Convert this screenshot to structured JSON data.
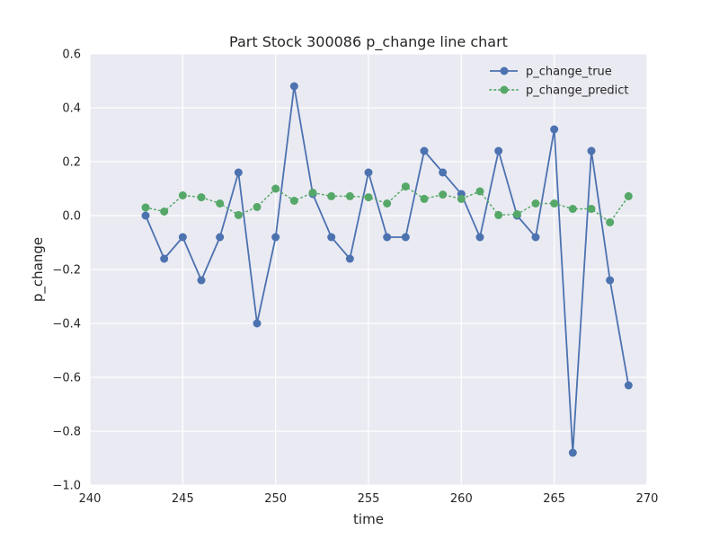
{
  "chart_data": {
    "type": "line",
    "title": "Part Stock 300086 p_change line chart",
    "xlabel": "time",
    "ylabel": "p_change",
    "xlim": [
      240,
      270
    ],
    "ylim": [
      -1.0,
      0.6
    ],
    "xticks": [
      "240",
      "245",
      "250",
      "255",
      "260",
      "265",
      "270"
    ],
    "yticks": [
      "0.6",
      "0.4",
      "0.2",
      "0.0",
      "−0.2",
      "−0.4",
      "−0.6",
      "−0.8",
      "−1.0"
    ],
    "grid": true,
    "legend_position": "top-right",
    "x": [
      243,
      244,
      245,
      246,
      247,
      248,
      249,
      250,
      251,
      252,
      253,
      254,
      255,
      256,
      257,
      258,
      259,
      260,
      261,
      262,
      263,
      264,
      265,
      266,
      267,
      268,
      269
    ],
    "series": [
      {
        "name": "p_change_true",
        "color": "#4c72b0",
        "style": "solid-with-markers",
        "values": [
          0.0,
          -0.16,
          -0.08,
          -0.24,
          -0.08,
          0.16,
          -0.4,
          -0.08,
          0.48,
          0.08,
          -0.08,
          -0.16,
          0.16,
          -0.08,
          -0.08,
          0.24,
          0.16,
          0.08,
          -0.08,
          0.24,
          0.0,
          -0.08,
          0.32,
          -0.88,
          0.24,
          -0.24,
          -0.63
        ]
      },
      {
        "name": "p_change_predict",
        "color": "#55a868",
        "style": "dotted-with-markers",
        "values": [
          0.03,
          0.015,
          0.075,
          0.068,
          0.045,
          0.002,
          0.032,
          0.1,
          0.055,
          0.085,
          0.072,
          0.072,
          0.068,
          0.045,
          0.108,
          0.062,
          0.078,
          0.062,
          0.09,
          0.002,
          0.005,
          0.045,
          0.045,
          0.025,
          0.025,
          -0.025,
          0.072
        ]
      }
    ]
  }
}
